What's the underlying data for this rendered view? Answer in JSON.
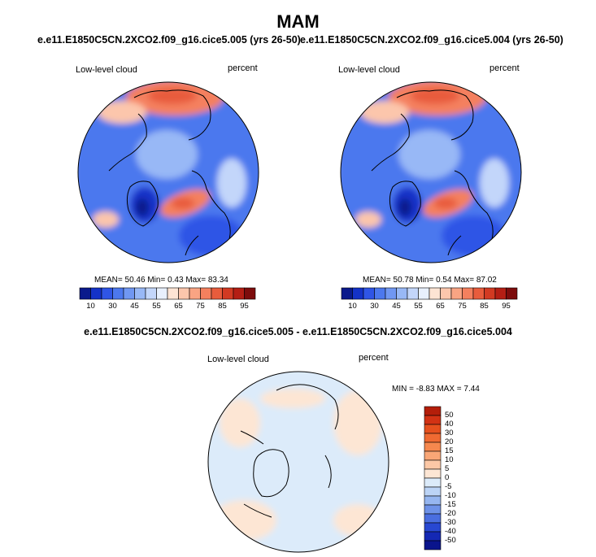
{
  "title": "MAM",
  "panels": [
    {
      "case_title": "e.e11.E1850C5CN.2XCO2.f09_g16.cice5.005 (yrs 26-50)",
      "variable": "Low-level cloud",
      "units": "percent",
      "stats": {
        "mean_label": "MEAN=",
        "mean": "50.46",
        "min_label": "Min=",
        "min": "0.43",
        "max_label": "Max=",
        "max": "83.34"
      }
    },
    {
      "case_title": "e.e11.E1850C5CN.2XCO2.f09_g16.cice5.004 (yrs 26-50)",
      "variable": "Low-level cloud",
      "units": "percent",
      "stats": {
        "mean_label": "MEAN=",
        "mean": "50.78",
        "min_label": "Min=",
        "min": "0.54",
        "max_label": "Max=",
        "max": "87.02"
      }
    }
  ],
  "diff_panel": {
    "title": "e.e11.E1850C5CN.2XCO2.f09_g16.cice5.005 - e.e11.E1850C5CN.2XCO2.f09_g16.cice5.004",
    "variable": "Low-level cloud",
    "units": "percent",
    "stats": {
      "min_label": "MIN =",
      "min": "-8.83",
      "max_label": "MAX =",
      "max": "7.44"
    }
  },
  "chart_data": [
    {
      "type": "heatmap",
      "projection": "north-polar-stereographic",
      "title": "e.e11.E1850C5CN.2XCO2.f09_g16.cice5.005 (yrs 26-50)",
      "variable": "Low-level cloud",
      "units": "percent",
      "mean": 50.46,
      "min": 0.43,
      "max": 83.34,
      "colorbar_ticks": [
        "10",
        "30",
        "45",
        "55",
        "65",
        "75",
        "85",
        "95"
      ],
      "colorbar_colors": [
        "#0a1a8c",
        "#1432c8",
        "#2f55e6",
        "#4c78ee",
        "#7097f2",
        "#98b8f6",
        "#c3d6fa",
        "#e8f0fd",
        "#fde4d4",
        "#fcc6ac",
        "#f9a483",
        "#f4805e",
        "#e85c3c",
        "#d23a22",
        "#b41e14",
        "#7d0c0c"
      ]
    },
    {
      "type": "heatmap",
      "projection": "north-polar-stereographic",
      "title": "e.e11.E1850C5CN.2XCO2.f09_g16.cice5.004 (yrs 26-50)",
      "variable": "Low-level cloud",
      "units": "percent",
      "mean": 50.78,
      "min": 0.54,
      "max": 87.02,
      "colorbar_ticks": [
        "10",
        "30",
        "45",
        "55",
        "65",
        "75",
        "85",
        "95"
      ],
      "colorbar_colors": [
        "#0a1a8c",
        "#1432c8",
        "#2f55e6",
        "#4c78ee",
        "#7097f2",
        "#98b8f6",
        "#c3d6fa",
        "#e8f0fd",
        "#fde4d4",
        "#fcc6ac",
        "#f9a483",
        "#f4805e",
        "#e85c3c",
        "#d23a22",
        "#b41e14",
        "#7d0c0c"
      ]
    },
    {
      "type": "heatmap",
      "projection": "north-polar-stereographic",
      "title": "e.e11.E1850C5CN.2XCO2.f09_g16.cice5.005 - e.e11.E1850C5CN.2XCO2.f09_g16.cice5.004",
      "variable": "Low-level cloud",
      "units": "percent",
      "min": -8.83,
      "max": 7.44,
      "colorbar_ticks": [
        "50",
        "40",
        "30",
        "20",
        "15",
        "10",
        "5",
        "0",
        "-5",
        "-10",
        "-15",
        "-20",
        "-30",
        "-40",
        "-50"
      ],
      "colorbar_colors": [
        "#b41e0a",
        "#d23214",
        "#e6501e",
        "#f06a32",
        "#f6884e",
        "#f9a676",
        "#fcc8a6",
        "#fde6d4",
        "#dcebfa",
        "#bcd4f6",
        "#96b6f0",
        "#6e92e8",
        "#4a6ee0",
        "#2848d2",
        "#1428b4",
        "#0a148c"
      ]
    }
  ]
}
